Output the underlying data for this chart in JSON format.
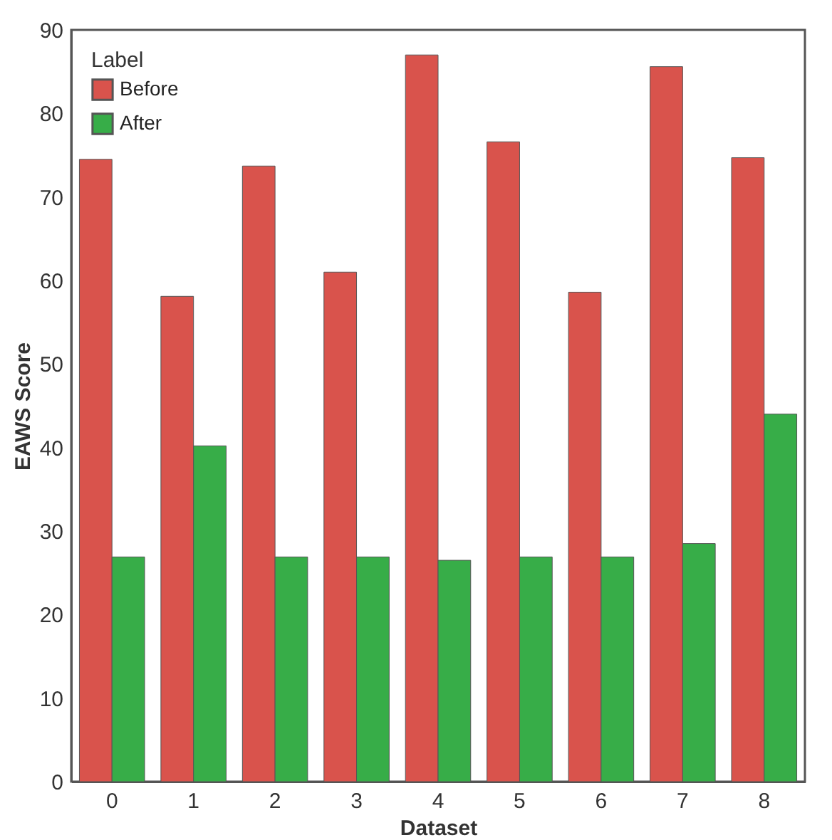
{
  "chart_data": {
    "type": "bar",
    "xlabel": "Dataset",
    "ylabel": "EAWS Score",
    "legend_title": "Label",
    "categories": [
      "0",
      "1",
      "2",
      "3",
      "4",
      "5",
      "6",
      "7",
      "8"
    ],
    "series": [
      {
        "name": "Before",
        "color": "#d9534c",
        "values": [
          74.5,
          58.1,
          73.7,
          61.0,
          87.0,
          76.6,
          58.6,
          85.6,
          74.7
        ]
      },
      {
        "name": "After",
        "color": "#37ad48",
        "values": [
          26.9,
          40.2,
          26.9,
          26.9,
          26.5,
          26.9,
          26.9,
          28.5,
          44.0
        ]
      }
    ],
    "ylim": [
      0,
      90
    ],
    "yticks": [
      0,
      10,
      20,
      30,
      40,
      50,
      60,
      70,
      80,
      90
    ],
    "grid": false,
    "legend": "top left"
  }
}
